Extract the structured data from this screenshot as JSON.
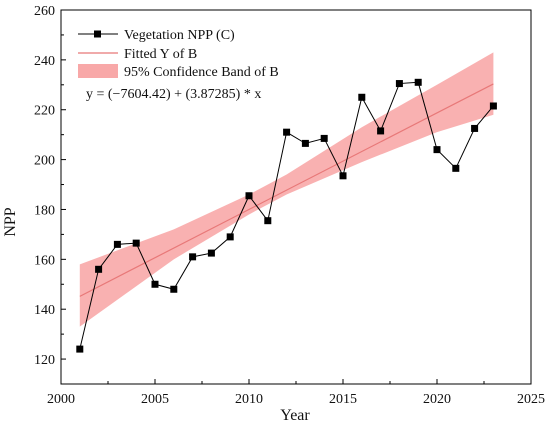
{
  "chart_data": {
    "type": "line",
    "title": "",
    "xlabel": "Year",
    "ylabel": "NPP",
    "xlim": [
      2000,
      2025
    ],
    "ylim": [
      110,
      260
    ],
    "x_ticks": [
      "2000",
      "2005",
      "2010",
      "2015",
      "2020",
      "2025"
    ],
    "y_ticks": [
      "120",
      "140",
      "160",
      "180",
      "200",
      "220",
      "240",
      "260"
    ],
    "grid": false,
    "legend_position": "top-left",
    "series": [
      {
        "name": "Vegetation NPP (C)",
        "kind": "line-markers",
        "color": "#000000",
        "x": [
          2001,
          2002,
          2003,
          2004,
          2005,
          2006,
          2007,
          2008,
          2009,
          2010,
          2011,
          2012,
          2013,
          2014,
          2015,
          2016,
          2017,
          2018,
          2019,
          2020,
          2021,
          2022,
          2023
        ],
        "y": [
          124.0,
          156.0,
          166.0,
          166.5,
          150.0,
          148.0,
          161.0,
          162.5,
          169.0,
          185.5,
          175.5,
          211.0,
          206.5,
          208.5,
          193.5,
          225.0,
          211.5,
          230.5,
          231.0,
          204.0,
          196.5,
          212.5,
          221.5
        ]
      },
      {
        "name": "Fitted Y of B",
        "kind": "fit-line",
        "color": "#e87878",
        "slope": 3.87285,
        "intercept": -7604.42,
        "x_range": [
          2001,
          2023
        ]
      },
      {
        "name": "95% Confidence Band of B",
        "kind": "band",
        "color": "#f8a8a8",
        "x": [
          2001,
          2006,
          2010,
          2012,
          2016,
          2020,
          2023
        ],
        "lower": [
          133.0,
          160.0,
          178.0,
          186.0,
          199.0,
          211.0,
          218.0
        ],
        "upper": [
          158.0,
          172.0,
          186.0,
          194.0,
          213.0,
          230.0,
          243.0
        ]
      }
    ],
    "annotations": [
      "y = (−7604.42) + (3.87285) * x"
    ]
  }
}
